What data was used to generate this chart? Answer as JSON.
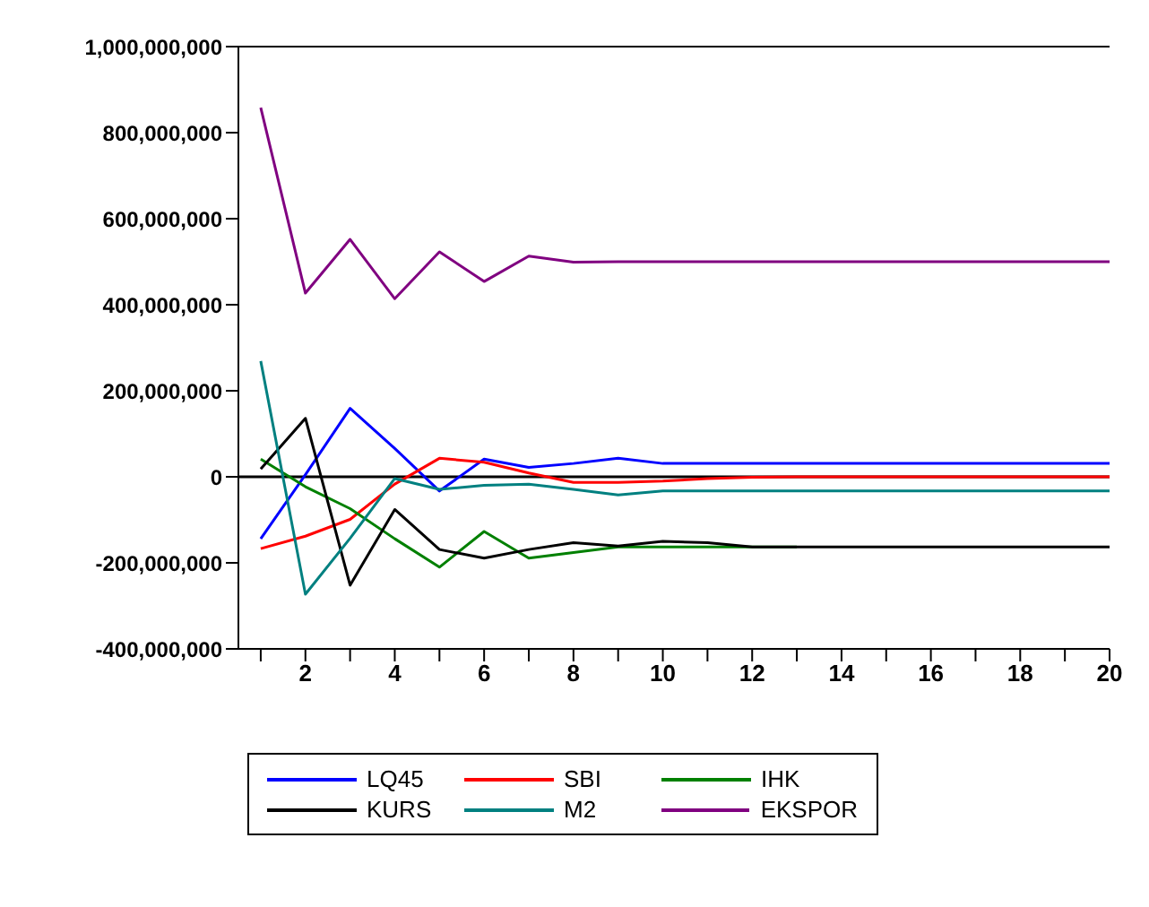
{
  "chart_data": {
    "type": "line",
    "x": [
      1,
      2,
      3,
      4,
      5,
      6,
      7,
      8,
      9,
      10,
      11,
      12,
      13,
      14,
      15,
      16,
      17,
      18,
      19,
      20
    ],
    "series": [
      {
        "name": "LQ45",
        "color": "#0000ff",
        "values": [
          -144000000,
          5000000,
          159000000,
          66000000,
          -33000000,
          41000000,
          22000000,
          31000000,
          43000000,
          31000000,
          31000000,
          31000000,
          31000000,
          31000000,
          31000000,
          31000000,
          31000000,
          31000000,
          31000000,
          31000000
        ]
      },
      {
        "name": "SBI",
        "color": "#ff0000",
        "values": [
          -167000000,
          -138000000,
          -99000000,
          -17000000,
          43000000,
          34000000,
          9000000,
          -13000000,
          -13000000,
          -10000000,
          -4000000,
          -1000000,
          0,
          0,
          0,
          0,
          0,
          0,
          0,
          0
        ]
      },
      {
        "name": "IHK",
        "color": "#008000",
        "values": [
          41000000,
          -23000000,
          -74000000,
          -144000000,
          -210000000,
          -127000000,
          -189000000,
          -176000000,
          -163000000,
          -163000000,
          -163000000,
          -163000000,
          -163000000,
          null,
          null,
          null,
          null,
          null,
          null,
          null
        ]
      },
      {
        "name": "KURS",
        "color": "#000000",
        "values": [
          18000000,
          136000000,
          -252000000,
          -76000000,
          -169000000,
          -189000000,
          -169000000,
          -153000000,
          -161000000,
          -150000000,
          -153000000,
          -163000000,
          -163000000,
          -163000000,
          -163000000,
          -163000000,
          -163000000,
          -163000000,
          -163000000,
          -163000000
        ]
      },
      {
        "name": "M2",
        "color": "#008080",
        "values": [
          269000000,
          -273000000,
          -143000000,
          -4000000,
          -29000000,
          -20000000,
          -17000000,
          -29000000,
          -42000000,
          -33000000,
          -33000000,
          -33000000,
          -33000000,
          -33000000,
          -33000000,
          -33000000,
          -33000000,
          -33000000,
          -33000000,
          -33000000
        ]
      },
      {
        "name": "EKSPOR",
        "color": "#800080",
        "values": [
          858000000,
          427000000,
          552000000,
          414000000,
          523000000,
          454000000,
          513000000,
          499000000,
          500000000,
          500000000,
          500000000,
          500000000,
          500000000,
          500000000,
          500000000,
          500000000,
          500000000,
          500000000,
          500000000,
          500000000
        ]
      }
    ],
    "xlim": [
      0.5,
      20
    ],
    "xticks": [
      {
        "value": 1,
        "label": null
      },
      2,
      {
        "value": 3,
        "label": null
      },
      4,
      {
        "value": 5,
        "label": null
      },
      6,
      {
        "value": 7,
        "label": null
      },
      8,
      {
        "value": 9,
        "label": null
      },
      10,
      {
        "value": 11,
        "label": null
      },
      12,
      {
        "value": 13,
        "label": null
      },
      14,
      {
        "value": 15,
        "label": null
      },
      16,
      {
        "value": 17,
        "label": null
      },
      18,
      {
        "value": 19,
        "label": null
      },
      20
    ],
    "ylim": [
      -400000000,
      1000000000
    ],
    "yticks": [
      {
        "value": -400000000,
        "label": "-400,000,000"
      },
      {
        "value": -200000000,
        "label": "-200,000,000"
      },
      0,
      {
        "value": 200000000,
        "label": "200,000,000"
      },
      {
        "value": 400000000,
        "label": "400,000,000"
      },
      {
        "value": 600000000,
        "label": "600,000,000"
      },
      {
        "value": 800000000,
        "label": "800,000,000"
      },
      {
        "value": 1000000000,
        "label": "1,000,000,000"
      }
    ],
    "ref_lines": [
      {
        "axis": "y",
        "value": 0,
        "color": "#000000"
      }
    ],
    "grid": false,
    "legend": "bottom",
    "marker": "none",
    "line_style": "solid"
  }
}
